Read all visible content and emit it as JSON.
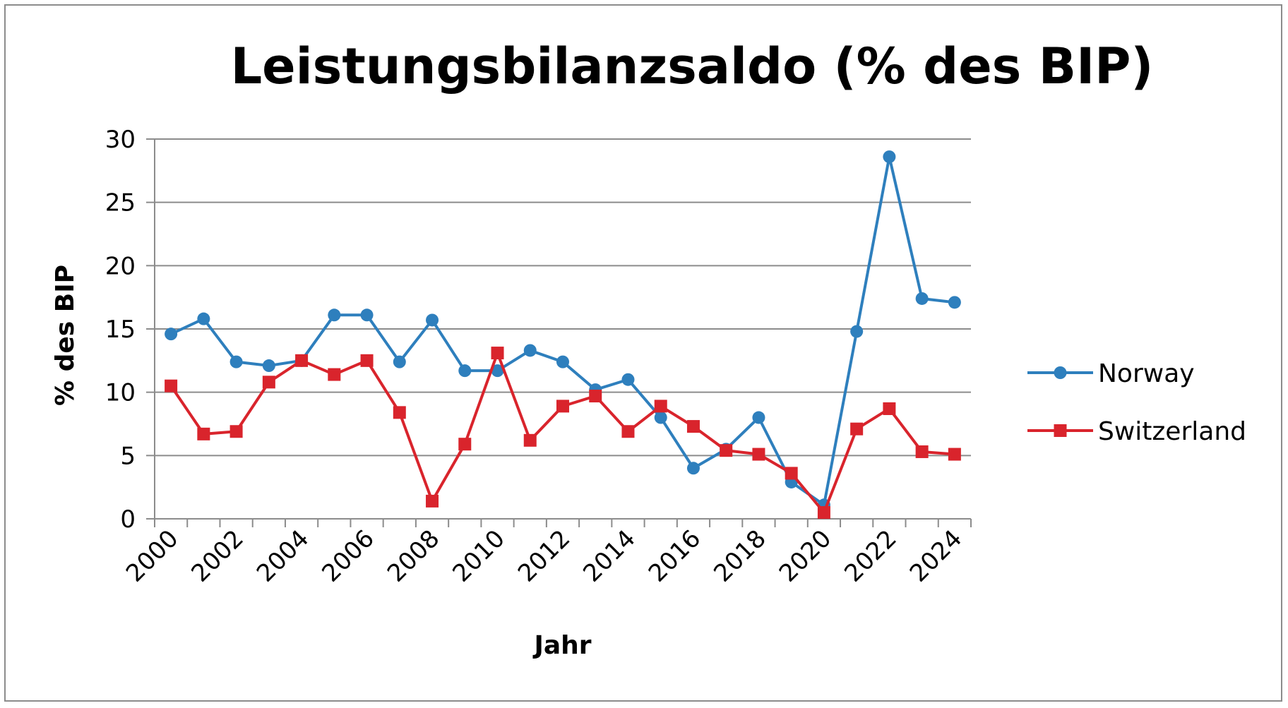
{
  "chart_data": {
    "type": "line",
    "title": "Leistungsbilanzsaldo (% des BIP)",
    "xlabel": "Jahr",
    "ylabel": "% des BIP",
    "x": [
      2000,
      2001,
      2002,
      2003,
      2004,
      2005,
      2006,
      2007,
      2008,
      2009,
      2010,
      2011,
      2012,
      2013,
      2014,
      2015,
      2016,
      2017,
      2018,
      2019,
      2020,
      2021,
      2022,
      2023,
      2024
    ],
    "x_tick_labels": [
      "2000",
      "2002",
      "2004",
      "2006",
      "2008",
      "2010",
      "2012",
      "2014",
      "2016",
      "2018",
      "2020",
      "2022",
      "2024"
    ],
    "y_tick_labels": [
      "0",
      "5",
      "10",
      "15",
      "20",
      "25",
      "30"
    ],
    "ylim": [
      0,
      30
    ],
    "grid": true,
    "legend_position": "right",
    "series": [
      {
        "name": "Norway",
        "color": "#2e7fbd",
        "marker": "circle",
        "values": [
          14.6,
          15.8,
          12.4,
          12.1,
          12.5,
          16.1,
          16.1,
          12.4,
          15.7,
          11.7,
          11.7,
          13.3,
          12.4,
          10.2,
          11.0,
          8.0,
          4.0,
          5.5,
          8.0,
          2.9,
          1.1,
          14.8,
          28.6,
          17.4,
          17.1
        ]
      },
      {
        "name": "Switzerland",
        "color": "#d9242c",
        "marker": "square",
        "values": [
          10.5,
          6.7,
          6.9,
          10.8,
          12.5,
          11.4,
          12.5,
          8.4,
          1.4,
          5.9,
          13.1,
          6.2,
          8.9,
          9.7,
          6.9,
          8.9,
          7.3,
          5.4,
          5.1,
          3.6,
          0.5,
          7.1,
          8.7,
          5.3,
          5.1
        ]
      }
    ]
  }
}
